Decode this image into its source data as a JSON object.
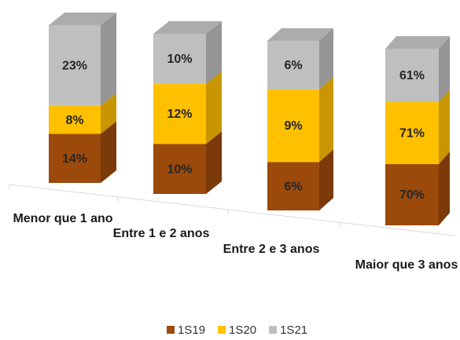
{
  "chart_data": {
    "type": "stacked_percent_bar_3d",
    "categories": [
      "Menor que 1 ano",
      "Entre 1 e 2 anos",
      "Entre 2 e 3 anos",
      "Maior que 3 anos"
    ],
    "series": [
      {
        "name": "1S19",
        "color": "#9c4a0c",
        "values": [
          14,
          10,
          6,
          70
        ],
        "value_labels": [
          "14%",
          "10%",
          "6%",
          "70%"
        ]
      },
      {
        "name": "1S20",
        "color": "#ffc000",
        "values": [
          8,
          12,
          9,
          71
        ],
        "value_labels": [
          "8%",
          "12%",
          "9%",
          "71%"
        ]
      },
      {
        "name": "1S21",
        "color": "#bfbfbf",
        "values": [
          23,
          10,
          6,
          61
        ],
        "value_labels": [
          "23%",
          "10%",
          "6%",
          "61%"
        ]
      }
    ],
    "legend": "bottom"
  }
}
